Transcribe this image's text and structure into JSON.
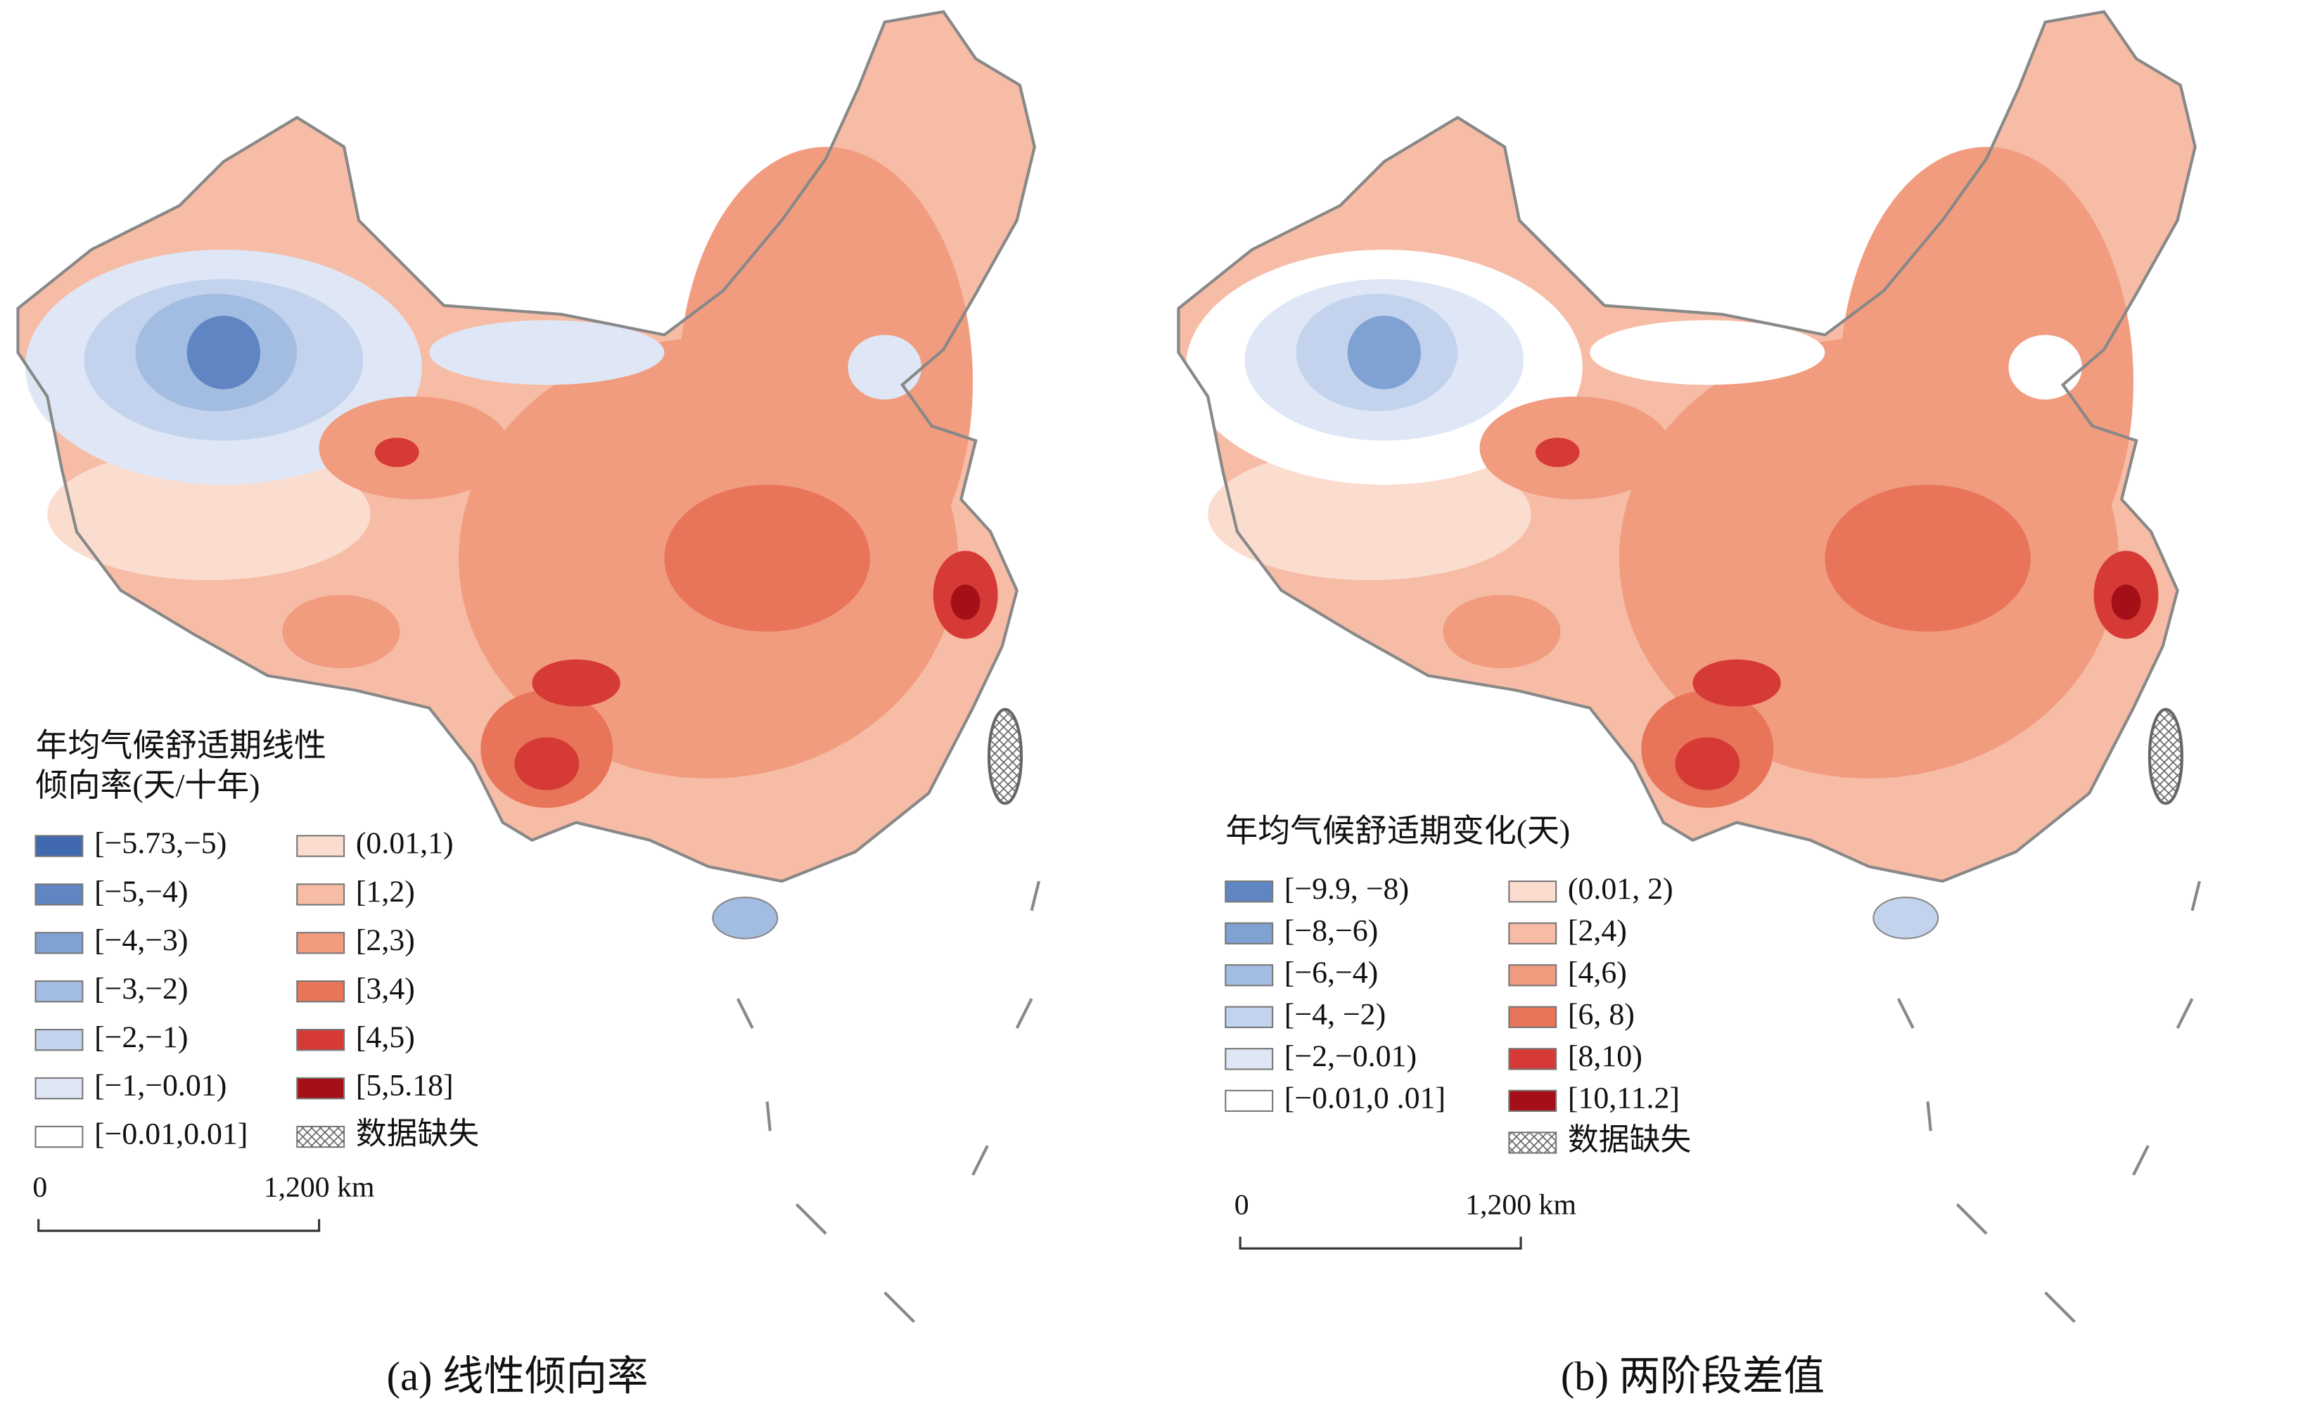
{
  "maps": [
    {
      "legend_title_lines": [
        "年均气候舒适期线性",
        "倾向率(天/十年)"
      ],
      "legend_columns": [
        [
          {
            "label": "[−5.73,−5)",
            "color": "#4169b0"
          },
          {
            "label": "[−5,−4)",
            "color": "#5f86c2"
          },
          {
            "label": "[−4,−3)",
            "color": "#7fa2d2"
          },
          {
            "label": "[−3,−2)",
            "color": "#a3bde2"
          },
          {
            "label": "[−2,−1)",
            "color": "#c3d3ee"
          },
          {
            "label": "[−1,−0.01)",
            "color": "#dfe7f6"
          },
          {
            "label": "[−0.01,0.01]",
            "color": "#ffffff"
          }
        ],
        [
          {
            "label": "(0.01,1)",
            "color": "#fbddd0"
          },
          {
            "label": "[1,2)",
            "color": "#f7bca5"
          },
          {
            "label": "[2,3)",
            "color": "#f19b7f"
          },
          {
            "label": "[3,4)",
            "color": "#e8745a"
          },
          {
            "label": "[4,5)",
            "color": "#d63a36"
          },
          {
            "label": "[5,5.18]",
            "color": "#a50f17"
          },
          {
            "label": "数据缺失",
            "hatch": true
          }
        ]
      ],
      "scale_start": "0",
      "scale_end": "1,200 km",
      "caption": "(a) 线性倾向率"
    },
    {
      "legend_title_lines": [
        "年均气候舒适期变化(天)"
      ],
      "legend_columns": [
        [
          {
            "label": "[−9.9, −8)",
            "color": "#5f86c2"
          },
          {
            "label": "[−8,−6)",
            "color": "#7fa2d2"
          },
          {
            "label": "[−6,−4)",
            "color": "#a3bde2"
          },
          {
            "label": "[−4, −2)",
            "color": "#c3d3ee"
          },
          {
            "label": "[−2,−0.01)",
            "color": "#dfe7f6"
          },
          {
            "label": "[−0.01,0 .01]",
            "color": "#ffffff"
          }
        ],
        [
          {
            "label": "(0.01, 2)",
            "color": "#fbddd0"
          },
          {
            "label": "[2,4)",
            "color": "#f7bca5"
          },
          {
            "label": "[4,6)",
            "color": "#f19b7f"
          },
          {
            "label": "[6, 8)",
            "color": "#e8745a"
          },
          {
            "label": "[8,10)",
            "color": "#d63a36"
          },
          {
            "label": "[10,11.2]",
            "color": "#a50f17"
          },
          {
            "label": "数据缺失",
            "hatch": true
          }
        ]
      ],
      "scale_start": "0",
      "scale_end": "1,200 km",
      "caption": "(b) 两阶段差值"
    }
  ]
}
